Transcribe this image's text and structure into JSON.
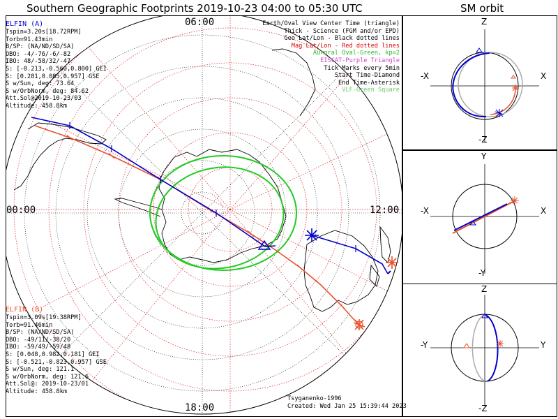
{
  "title": "Southern Geographic Footprints 2019-10-23 04:00 to 05:30 UTC",
  "sm_title": "SM orbit",
  "mlt_labels": {
    "top": "06:00",
    "left": "00:00",
    "right": "12:00",
    "bottom": "18:00"
  },
  "elfin_a": {
    "header": "ELFIN (A)",
    "lines": [
      "Tspin=3.20s[18.72RPM]",
      "Torb=91.43min",
      "B/SP: (NA/ND/SD/SA)",
      "OBO: -4/-76/-6/-82",
      "IBO: 48/-58/32/-47",
      "S: [-0.213,-0.560,0.800] GEI",
      "S: [0.281,0.085,0.957] GSE",
      "S w/Sun, deg: 73.64",
      "S w/OrbNorm, deg: 84.62",
      "Att.Sol@2019-10-23/03",
      "Altitude: 458.8km"
    ],
    "color": "#0000cc"
  },
  "elfin_b": {
    "header": "ELFIN (B)",
    "lines": [
      "Tspin=3.09s[19.38RPM]",
      "Torb=91.46min",
      "B/SP: (NA/ND/SD/SA)",
      "OBO: -49/11/-38/20",
      "IBO: -59/49/-59/48",
      "S: [0.048,0.982,0.181] GEI",
      "S: [-0.521,-0.823,0.957] GSE",
      "S w/Sun, deg: 121.1",
      "S w/OrbNorm, deg: 121.6",
      "Att.Sol@: 2019-10-23/01",
      "Altitude: 458.8km"
    ],
    "color": "#e8502e"
  },
  "legend": [
    {
      "text": "Earth/Oval View Center Time (triangle)",
      "color": "#000000"
    },
    {
      "text": "Thick - Science (FGM and/or EPD)",
      "color": "#000000"
    },
    {
      "text": "Geo Lat/Lon - Black dotted lines",
      "color": "#000000"
    },
    {
      "text": "Mag Lat/Lon - Red dotted lines",
      "color": "#dd0000"
    },
    {
      "text": "Auroral Oval-Green, kp=2",
      "color": "#22bb22"
    },
    {
      "text": "EISCAT-Purple Triangle",
      "color": "#cc44cc"
    },
    {
      "text": "Tick Marks every 5min",
      "color": "#000000"
    },
    {
      "text": "Start Time-Diamond",
      "color": "#000000"
    },
    {
      "text": "End Time-Asterisk",
      "color": "#000000"
    },
    {
      "text": "VLF-Green Square",
      "color": "#66cc66"
    }
  ],
  "credit": {
    "author": "Tsyganenko-1996",
    "created": "Created: Wed Jan 25 15:39:44 2023"
  },
  "sm_panels": [
    {
      "top": "Z",
      "bottom": "-Z",
      "left": "-X",
      "right": "X"
    },
    {
      "top": "Y",
      "bottom": "-Y",
      "left": "-X",
      "right": "X"
    },
    {
      "top": "Z",
      "bottom": "-Z",
      "left": "-Y",
      "right": "Y"
    }
  ],
  "colors": {
    "elfin_a": "#0000cc",
    "elfin_b": "#e8502e",
    "oval": "#22cc22",
    "mag_grid": "#dd2222",
    "geo_grid": "#000000"
  }
}
